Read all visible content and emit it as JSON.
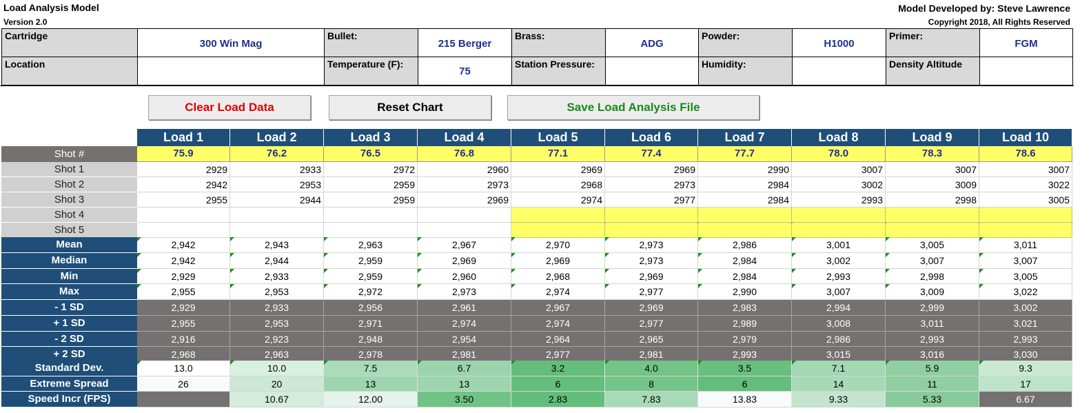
{
  "app": {
    "title": "Load Analysis Model",
    "version": "Version 2.0",
    "developer": "Model Developed by: Steve Lawrence",
    "copyright": "Copyright 2018, All Rights Reserved"
  },
  "header": {
    "row1": [
      {
        "label": "Cartridge",
        "value": "300 Win Mag"
      },
      {
        "label": "Bullet:",
        "value": "215 Berger"
      },
      {
        "label": "Brass:",
        "value": "ADG"
      },
      {
        "label": "Powder:",
        "value": "H1000"
      },
      {
        "label": "Primer:",
        "value": "FGM"
      }
    ],
    "row2": [
      {
        "label": "Location",
        "value": ""
      },
      {
        "label": "Temperature (F):",
        "value": "75"
      },
      {
        "label": "Station Pressure:",
        "value": ""
      },
      {
        "label": "Humidity:",
        "value": ""
      },
      {
        "label": "Density Altitude",
        "value": ""
      }
    ]
  },
  "buttons": {
    "clear": "Clear Load Data",
    "reset": "Reset Chart",
    "save": "Save Load Analysis File"
  },
  "colors": {
    "clear": "#e00000",
    "reset": "#000000",
    "save": "#1a8a1a",
    "header_blue": "#1f4e79",
    "charge_yellow": "#ffff66"
  },
  "grid": {
    "shot_header": "Shot #",
    "loads": [
      "Load 1",
      "Load 2",
      "Load 3",
      "Load 4",
      "Load 5",
      "Load 6",
      "Load 7",
      "Load 8",
      "Load 9",
      "Load 10"
    ],
    "charges": [
      "75.9",
      "76.2",
      "76.5",
      "76.8",
      "77.1",
      "77.4",
      "77.7",
      "78.0",
      "78.3",
      "78.6"
    ],
    "shots": [
      {
        "label": "Shot 1",
        "values": [
          "2929",
          "2933",
          "2972",
          "2960",
          "2969",
          "2969",
          "2990",
          "3007",
          "3007",
          "3007"
        ]
      },
      {
        "label": "Shot 2",
        "values": [
          "2942",
          "2953",
          "2959",
          "2973",
          "2968",
          "2973",
          "2984",
          "3002",
          "3009",
          "3022"
        ]
      },
      {
        "label": "Shot 3",
        "values": [
          "2955",
          "2944",
          "2959",
          "2969",
          "2974",
          "2977",
          "2984",
          "2993",
          "2998",
          "3005"
        ]
      },
      {
        "label": "Shot 4",
        "values": [
          "",
          "",
          "",
          "",
          "",
          "",
          "",
          "",
          "",
          ""
        ]
      },
      {
        "label": "Shot 5",
        "values": [
          "",
          "",
          "",
          "",
          "",
          "",
          "",
          "",
          "",
          ""
        ]
      }
    ],
    "stats": [
      {
        "label": "Mean",
        "values": [
          "2,942",
          "2,943",
          "2,963",
          "2,967",
          "2,970",
          "2,973",
          "2,986",
          "3,001",
          "3,005",
          "3,011"
        ]
      },
      {
        "label": "Median",
        "values": [
          "2,942",
          "2,944",
          "2,959",
          "2,969",
          "2,969",
          "2,973",
          "2,984",
          "3,002",
          "3,007",
          "3,007"
        ]
      },
      {
        "label": "Min",
        "values": [
          "2,929",
          "2,933",
          "2,959",
          "2,960",
          "2,968",
          "2,969",
          "2,984",
          "2,993",
          "2,998",
          "3,005"
        ]
      },
      {
        "label": "Max",
        "values": [
          "2,955",
          "2,953",
          "2,972",
          "2,973",
          "2,974",
          "2,977",
          "2,990",
          "3,007",
          "3,009",
          "3,022"
        ]
      }
    ],
    "sd_rows": [
      {
        "label": "- 1 SD",
        "values": [
          "2,929",
          "2,933",
          "2,956",
          "2,961",
          "2,967",
          "2,969",
          "2,983",
          "2,994",
          "2,999",
          "3,002"
        ]
      },
      {
        "label": "+ 1 SD",
        "values": [
          "2,955",
          "2,953",
          "2,971",
          "2,974",
          "2,974",
          "2,977",
          "2,989",
          "3,008",
          "3,011",
          "3,021"
        ]
      },
      {
        "label": "- 2 SD",
        "values": [
          "2,916",
          "2,923",
          "2,948",
          "2,954",
          "2,964",
          "2,965",
          "2,979",
          "2,986",
          "2,993",
          "2,993"
        ]
      },
      {
        "label": "+ 2 SD",
        "values": [
          "2,968",
          "2,963",
          "2,978",
          "2,981",
          "2,977",
          "2,981",
          "2,993",
          "3,015",
          "3,016",
          "3,030"
        ]
      }
    ],
    "summary": [
      {
        "label": "Standard Dev.",
        "values": [
          "13.0",
          "10.0",
          "7.5",
          "6.7",
          "3.2",
          "4.0",
          "3.5",
          "7.1",
          "5.9",
          "9.3"
        ],
        "colors": [
          "#ffffff",
          "#d9efe0",
          "#a9dbb8",
          "#9ad4ab",
          "#63be7b",
          "#72c487",
          "#68c07f",
          "#a3d8b3",
          "#8fcfa1",
          "#cae9d3"
        ]
      },
      {
        "label": "Extreme Spread",
        "values": [
          "26",
          "20",
          "13",
          "13",
          "6",
          "8",
          "6",
          "14",
          "11",
          "17"
        ],
        "colors": [
          "#f8fbfc",
          "#cde8d5",
          "#9dd5ae",
          "#9dd5ae",
          "#63be7b",
          "#73c588",
          "#63be7b",
          "#a7d9b6",
          "#8fcfa1",
          "#bde3c9"
        ]
      },
      {
        "label": "Speed Incr (FPS)",
        "values": [
          "",
          "10.67",
          "12.00",
          "3.50",
          "2.83",
          "7.83",
          "13.83",
          "9.33",
          "5.33",
          "6.67"
        ],
        "colors": [
          "#767171",
          "#d3ecdb",
          "#e5f3ea",
          "#6fc385",
          "#63be7b",
          "#a8dab7",
          "#f8fbfc",
          "#c3e5cd",
          "#86cb99",
          "#767171"
        ]
      }
    ]
  }
}
